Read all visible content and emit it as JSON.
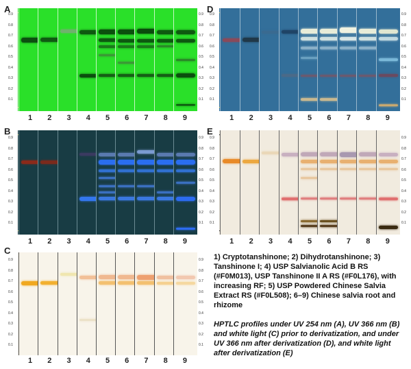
{
  "panels": [
    {
      "key": "A",
      "letter": "A",
      "bg": "#22d81f",
      "track": "#2ae029",
      "divider": "#c9f7c6",
      "line": "#c0c060",
      "lanes": [
        [
          {
            "rf": 0.71,
            "c": "#0c4f10",
            "w": 7
          }
        ],
        [
          {
            "rf": 0.71,
            "c": "#0f5a12",
            "w": 6
          }
        ],
        [
          {
            "rf": 0.8,
            "c": "#6fb26c",
            "w": 5
          }
        ],
        [
          {
            "rf": 0.79,
            "c": "#0e5a10",
            "w": 6
          },
          {
            "rf": 0.33,
            "c": "#0b4e0e",
            "w": 5
          }
        ],
        [
          {
            "rf": 0.79,
            "c": "#0b500d",
            "w": 7
          },
          {
            "rf": 0.71,
            "c": "#0d5810",
            "w": 5
          },
          {
            "rf": 0.64,
            "c": "#1a7a1a",
            "w": 4
          },
          {
            "rf": 0.55,
            "c": "#3a9a35",
            "w": 3
          },
          {
            "rf": 0.33,
            "c": "#155e15",
            "w": 4
          }
        ],
        [
          {
            "rf": 0.79,
            "c": "#0b500d",
            "w": 7
          },
          {
            "rf": 0.7,
            "c": "#0d5810",
            "w": 5
          },
          {
            "rf": 0.64,
            "c": "#1a7a1a",
            "w": 4
          },
          {
            "rf": 0.47,
            "c": "#3a9a35",
            "w": 3
          },
          {
            "rf": 0.33,
            "c": "#155e15",
            "w": 4
          }
        ],
        [
          {
            "rf": 0.8,
            "c": "#0a4a0c",
            "w": 7
          },
          {
            "rf": 0.7,
            "c": "#0d5810",
            "w": 5
          },
          {
            "rf": 0.64,
            "c": "#1a7a1a",
            "w": 4
          },
          {
            "rf": 0.33,
            "c": "#155e15",
            "w": 4
          }
        ],
        [
          {
            "rf": 0.79,
            "c": "#0e5a10",
            "w": 6
          },
          {
            "rf": 0.7,
            "c": "#0d5810",
            "w": 5
          },
          {
            "rf": 0.64,
            "c": "#2a8a28",
            "w": 3
          },
          {
            "rf": 0.33,
            "c": "#155e15",
            "w": 4
          }
        ],
        [
          {
            "rf": 0.79,
            "c": "#0e5a10",
            "w": 6
          },
          {
            "rf": 0.7,
            "c": "#0d5810",
            "w": 5
          },
          {
            "rf": 0.5,
            "c": "#2a8a28",
            "w": 3
          },
          {
            "rf": 0.33,
            "c": "#0b4e0e",
            "w": 6
          },
          {
            "rf": 0.02,
            "c": "#0b4e0e",
            "w": 2
          }
        ]
      ]
    },
    {
      "key": "B",
      "letter": "B",
      "bg": "#14343c",
      "track": "#183c44",
      "divider": "#6c8c94",
      "line": "#b0b040",
      "lanes": [
        [
          {
            "rf": 0.71,
            "c": "#8b2a1a",
            "w": 5
          }
        ],
        [
          {
            "rf": 0.71,
            "c": "#7a2a1c",
            "w": 5
          }
        ],
        [],
        [
          {
            "rf": 0.79,
            "c": "#3a3a60",
            "w": 4
          },
          {
            "rf": 0.33,
            "c": "#3377ee",
            "w": 6
          }
        ],
        [
          {
            "rf": 0.79,
            "c": "#5a7ab0",
            "w": 5
          },
          {
            "rf": 0.71,
            "c": "#2a6ef0",
            "w": 7
          },
          {
            "rf": 0.62,
            "c": "#3070d0",
            "w": 4
          },
          {
            "rf": 0.55,
            "c": "#3a70c0",
            "w": 3
          },
          {
            "rf": 0.46,
            "c": "#3a70c0",
            "w": 3
          },
          {
            "rf": 0.4,
            "c": "#3a70c0",
            "w": 3
          },
          {
            "rf": 0.33,
            "c": "#3a78e0",
            "w": 5
          }
        ],
        [
          {
            "rf": 0.79,
            "c": "#5a7ab0",
            "w": 5
          },
          {
            "rf": 0.71,
            "c": "#2a6ef0",
            "w": 7
          },
          {
            "rf": 0.62,
            "c": "#3070d0",
            "w": 4
          },
          {
            "rf": 0.46,
            "c": "#3a70c0",
            "w": 3
          },
          {
            "rf": 0.33,
            "c": "#3a78e0",
            "w": 5
          }
        ],
        [
          {
            "rf": 0.82,
            "c": "#7a9ad0",
            "w": 5
          },
          {
            "rf": 0.71,
            "c": "#2a6ef0",
            "w": 7
          },
          {
            "rf": 0.62,
            "c": "#3070d0",
            "w": 4
          },
          {
            "rf": 0.46,
            "c": "#3a70c0",
            "w": 3
          },
          {
            "rf": 0.33,
            "c": "#3a78e0",
            "w": 5
          }
        ],
        [
          {
            "rf": 0.79,
            "c": "#5a7ab0",
            "w": 5
          },
          {
            "rf": 0.71,
            "c": "#2a6ef0",
            "w": 7
          },
          {
            "rf": 0.62,
            "c": "#3070d0",
            "w": 4
          },
          {
            "rf": 0.4,
            "c": "#3a70c0",
            "w": 3
          },
          {
            "rf": 0.33,
            "c": "#3a78e0",
            "w": 5
          }
        ],
        [
          {
            "rf": 0.79,
            "c": "#5a7ab0",
            "w": 5
          },
          {
            "rf": 0.71,
            "c": "#2a6ef0",
            "w": 7
          },
          {
            "rf": 0.62,
            "c": "#3070d0",
            "w": 4
          },
          {
            "rf": 0.5,
            "c": "#3a70c0",
            "w": 3
          },
          {
            "rf": 0.33,
            "c": "#2c6cf0",
            "w": 6
          },
          {
            "rf": 0.02,
            "c": "#2c6cf0",
            "w": 3
          }
        ]
      ]
    },
    {
      "key": "C",
      "letter": "C",
      "bg": "#f3efe4",
      "track": "#f8f4ea",
      "divider": "#555555",
      "line": "#e8e4d8",
      "lanes": [
        [
          {
            "rf": 0.72,
            "c": "#f0a820",
            "w": 6
          }
        ],
        [
          {
            "rf": 0.72,
            "c": "#f2b030",
            "w": 5
          }
        ],
        [
          {
            "rf": 0.81,
            "c": "#f0e6b0",
            "w": 4
          }
        ],
        [
          {
            "rf": 0.78,
            "c": "#f2c098",
            "w": 5
          },
          {
            "rf": 0.33,
            "c": "#ece2c8",
            "w": 3
          }
        ],
        [
          {
            "rf": 0.78,
            "c": "#f0b890",
            "w": 6
          },
          {
            "rf": 0.72,
            "c": "#f3c070",
            "w": 5
          }
        ],
        [
          {
            "rf": 0.78,
            "c": "#f0b890",
            "w": 6
          },
          {
            "rf": 0.72,
            "c": "#f3c070",
            "w": 5
          }
        ],
        [
          {
            "rf": 0.78,
            "c": "#eea070",
            "w": 7
          },
          {
            "rf": 0.72,
            "c": "#f3c070",
            "w": 5
          }
        ],
        [
          {
            "rf": 0.78,
            "c": "#f0c0a0",
            "w": 5
          },
          {
            "rf": 0.72,
            "c": "#f5d090",
            "w": 4
          }
        ],
        [
          {
            "rf": 0.78,
            "c": "#f2c8b0",
            "w": 5
          },
          {
            "rf": 0.72,
            "c": "#f5d8a0",
            "w": 4
          }
        ]
      ]
    },
    {
      "key": "D",
      "letter": "D",
      "bg": "#2f6e9c",
      "track": "#336f9a",
      "divider": "#9ab8cc",
      "line": "#c8c040",
      "lanes": [
        [
          {
            "rf": 0.71,
            "c": "#8a4a5a",
            "w": 5
          }
        ],
        [
          {
            "rf": 0.71,
            "c": "#203848",
            "w": 6
          }
        ],
        [
          {
            "rf": 0.79,
            "c": "#3a6a90",
            "w": 4
          }
        ],
        [
          {
            "rf": 0.79,
            "c": "#1f4466",
            "w": 5
          },
          {
            "rf": 0.33,
            "c": "#4a6a88",
            "w": 4
          }
        ],
        [
          {
            "rf": 0.8,
            "c": "#e8ecd8",
            "w": 7
          },
          {
            "rf": 0.72,
            "c": "#cfe0e0",
            "w": 5
          },
          {
            "rf": 0.62,
            "c": "#8ab0c8",
            "w": 4
          },
          {
            "rf": 0.52,
            "c": "#6aa0c0",
            "w": 3
          },
          {
            "rf": 0.33,
            "c": "#6a5a70",
            "w": 3
          },
          {
            "rf": 0.08,
            "c": "#c8b890",
            "w": 4
          }
        ],
        [
          {
            "rf": 0.8,
            "c": "#e8ecd8",
            "w": 7
          },
          {
            "rf": 0.72,
            "c": "#cfe0e0",
            "w": 5
          },
          {
            "rf": 0.62,
            "c": "#8ab0c8",
            "w": 4
          },
          {
            "rf": 0.33,
            "c": "#6a5a70",
            "w": 3
          },
          {
            "rf": 0.08,
            "c": "#c8b890",
            "w": 4
          }
        ],
        [
          {
            "rf": 0.81,
            "c": "#f0f2e0",
            "w": 8
          },
          {
            "rf": 0.72,
            "c": "#d8e6e6",
            "w": 5
          },
          {
            "rf": 0.62,
            "c": "#8ab0c8",
            "w": 4
          },
          {
            "rf": 0.33,
            "c": "#6a5a70",
            "w": 3
          }
        ],
        [
          {
            "rf": 0.8,
            "c": "#e8ecd8",
            "w": 7
          },
          {
            "rf": 0.72,
            "c": "#cfe0e0",
            "w": 5
          },
          {
            "rf": 0.62,
            "c": "#8ab0c8",
            "w": 4
          },
          {
            "rf": 0.33,
            "c": "#6a5a70",
            "w": 3
          }
        ],
        [
          {
            "rf": 0.8,
            "c": "#e0e6d0",
            "w": 6
          },
          {
            "rf": 0.72,
            "c": "#c0d8e0",
            "w": 5
          },
          {
            "rf": 0.5,
            "c": "#7ab8d8",
            "w": 4
          },
          {
            "rf": 0.33,
            "c": "#6a4a60",
            "w": 4
          },
          {
            "rf": 0.02,
            "c": "#c8a870",
            "w": 3
          }
        ]
      ]
    },
    {
      "key": "E",
      "letter": "E",
      "bg": "#ece6da",
      "track": "#f1ebdf",
      "divider": "#666666",
      "line": "#222222",
      "lanes": [
        [
          {
            "rf": 0.72,
            "c": "#e88a28",
            "w": 6
          }
        ],
        [
          {
            "rf": 0.72,
            "c": "#eca840",
            "w": 5
          }
        ],
        [
          {
            "rf": 0.81,
            "c": "#ead8b8",
            "w": 4
          }
        ],
        [
          {
            "rf": 0.79,
            "c": "#c8b0c0",
            "w": 5
          },
          {
            "rf": 0.33,
            "c": "#e07070",
            "w": 4
          }
        ],
        [
          {
            "rf": 0.79,
            "c": "#c0a8b8",
            "w": 6
          },
          {
            "rf": 0.72,
            "c": "#e8b070",
            "w": 5
          },
          {
            "rf": 0.64,
            "c": "#e8c8a0",
            "w": 3
          },
          {
            "rf": 0.55,
            "c": "#e8c8a0",
            "w": 3
          },
          {
            "rf": 0.33,
            "c": "#e08080",
            "w": 3
          },
          {
            "rf": 0.1,
            "c": "#8a6a30",
            "w": 3
          },
          {
            "rf": 0.05,
            "c": "#5a4020",
            "w": 3
          }
        ],
        [
          {
            "rf": 0.79,
            "c": "#c0a8b8",
            "w": 6
          },
          {
            "rf": 0.72,
            "c": "#e8b070",
            "w": 5
          },
          {
            "rf": 0.64,
            "c": "#e8c8a0",
            "w": 3
          },
          {
            "rf": 0.33,
            "c": "#e08080",
            "w": 3
          },
          {
            "rf": 0.1,
            "c": "#6a5020",
            "w": 3
          },
          {
            "rf": 0.05,
            "c": "#5a4020",
            "w": 3
          }
        ],
        [
          {
            "rf": 0.79,
            "c": "#a898b0",
            "w": 7
          },
          {
            "rf": 0.72,
            "c": "#e8b070",
            "w": 5
          },
          {
            "rf": 0.64,
            "c": "#e8c8a0",
            "w": 3
          },
          {
            "rf": 0.33,
            "c": "#e08080",
            "w": 3
          }
        ],
        [
          {
            "rf": 0.79,
            "c": "#c0a8b8",
            "w": 6
          },
          {
            "rf": 0.72,
            "c": "#e8b070",
            "w": 5
          },
          {
            "rf": 0.64,
            "c": "#e8c8a0",
            "w": 3
          },
          {
            "rf": 0.33,
            "c": "#e08080",
            "w": 3
          }
        ],
        [
          {
            "rf": 0.79,
            "c": "#c8b0c0",
            "w": 5
          },
          {
            "rf": 0.72,
            "c": "#e8b070",
            "w": 5
          },
          {
            "rf": 0.64,
            "c": "#e8c8a0",
            "w": 3
          },
          {
            "rf": 0.33,
            "c": "#e07070",
            "w": 4
          },
          {
            "rf": 0.03,
            "c": "#3a2a10",
            "w": 5
          }
        ]
      ]
    }
  ],
  "lane_numbers": [
    "1",
    "2",
    "3",
    "4",
    "5",
    "6",
    "7",
    "8",
    "9"
  ],
  "rf_scale": [
    "0.9",
    "0.8",
    "0.7",
    "0.6",
    "0.5",
    "0.4",
    "0.3",
    "0.2",
    "0.1"
  ],
  "caption": {
    "legend": "1) Cryptotanshinone; 2) Dihydrotanshinone; 3) Tanshinone I; 4) USP Salvianolic Acid B RS (#F0M013), USP Tanshinone II A RS (#F0L176), with increasing RF; 5) USP Powdered Chinese Salvia Extract RS (#F0L508); 6–9) Chinese salvia root and rhizome",
    "description": "HPTLC profiles under UV 254 nm (A), UV 366 nm (B) and white light (C) prior to derivatization, and under UV 366 nm after derivatization (D), and white light after derivatization (E)"
  }
}
